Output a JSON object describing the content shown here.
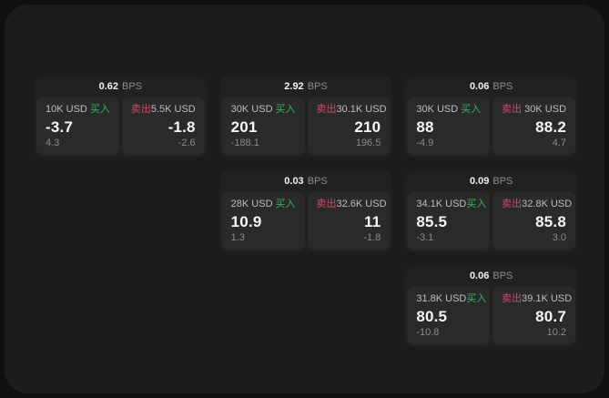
{
  "colors": {
    "background": "#101010",
    "surface": "#1c1c1c",
    "card": "#212121",
    "panel": "#2a2a2a",
    "buy": "#3fae63",
    "sell": "#cf4a66"
  },
  "cards": [
    {
      "bps": "0.62",
      "unit": "BPS",
      "buy": {
        "amount": "10K USD",
        "label": "买入",
        "value": "-3.7",
        "change": "4.3"
      },
      "sell": {
        "label": "卖出",
        "amount": "5.5K USD",
        "value": "-1.8",
        "change": "-2.6"
      }
    },
    {
      "bps": "2.92",
      "unit": "BPS",
      "buy": {
        "amount": "30K USD",
        "label": "买入",
        "value": "201",
        "change": "-188.1"
      },
      "sell": {
        "label": "卖出",
        "amount": "30.1K USD",
        "value": "210",
        "change": "196.5"
      }
    },
    {
      "bps": "0.06",
      "unit": "BPS",
      "buy": {
        "amount": "30K USD",
        "label": "买入",
        "value": "88",
        "change": "-4.9"
      },
      "sell": {
        "label": "卖出",
        "amount": "30K USD",
        "value": "88.2",
        "change": "4.7"
      }
    },
    {
      "bps": "0.03",
      "unit": "BPS",
      "buy": {
        "amount": "28K USD",
        "label": "买入",
        "value": "10.9",
        "change": "1.3"
      },
      "sell": {
        "label": "卖出",
        "amount": "32.6K USD",
        "value": "11",
        "change": "-1.8"
      }
    },
    {
      "bps": "0.09",
      "unit": "BPS",
      "buy": {
        "amount": "34.1K USD",
        "label": "买入",
        "value": "85.5",
        "change": "-3.1"
      },
      "sell": {
        "label": "卖出",
        "amount": "32.8K USD",
        "value": "85.8",
        "change": "3.0"
      }
    },
    {
      "bps": "0.06",
      "unit": "BPS",
      "buy": {
        "amount": "31.8K USD",
        "label": "买入",
        "value": "80.5",
        "change": "-10.8"
      },
      "sell": {
        "label": "卖出",
        "amount": "39.1K USD",
        "value": "80.7",
        "change": "10.2"
      }
    }
  ]
}
